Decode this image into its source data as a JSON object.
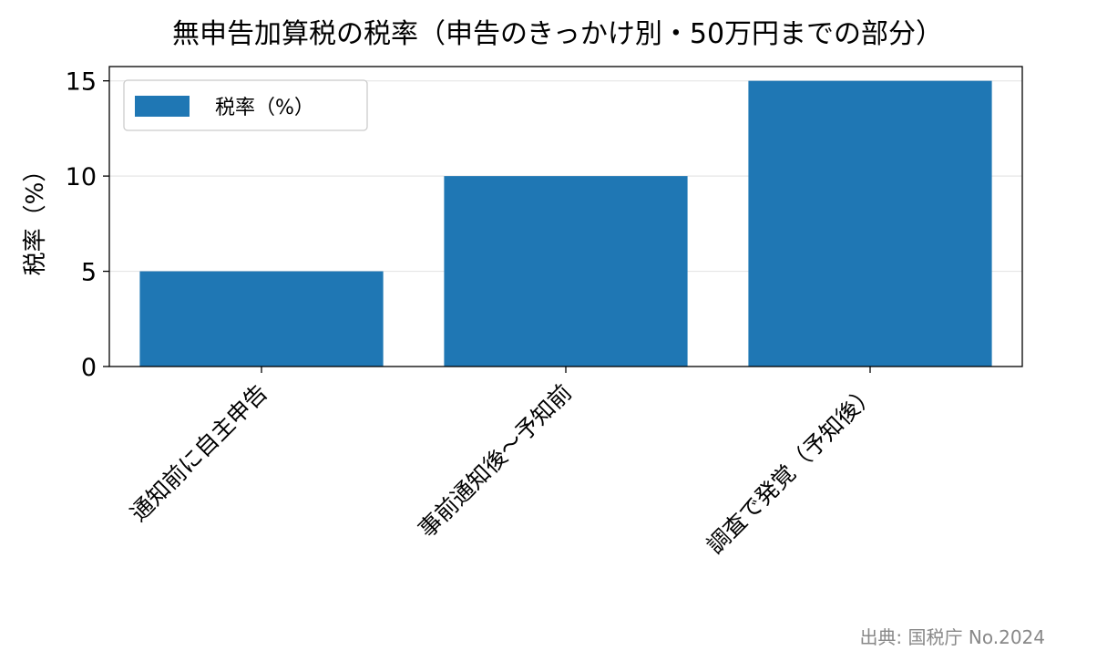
{
  "chart_data": {
    "type": "bar",
    "title": "無申告加算税の税率（申告のきっかけ別・50万円までの部分）",
    "categories": [
      "通知前に自主申告",
      "事前通知後〜予知前",
      "調査で発覚（予知後）"
    ],
    "series": [
      {
        "name": "税率（%）",
        "values": [
          5,
          10,
          15
        ]
      }
    ],
    "xlabel": "",
    "ylabel": "税率（%）",
    "ylim": [
      0,
      15.75
    ],
    "yticks": [
      0,
      5,
      10,
      15
    ],
    "grid": "horizontal",
    "legend_position": "top-left",
    "colors": {
      "bar": "#1f77b4",
      "grid": "#e6e6e6",
      "axis": "#000000",
      "source": "#888888"
    }
  },
  "source_note": "出典: 国税庁 No.2024"
}
